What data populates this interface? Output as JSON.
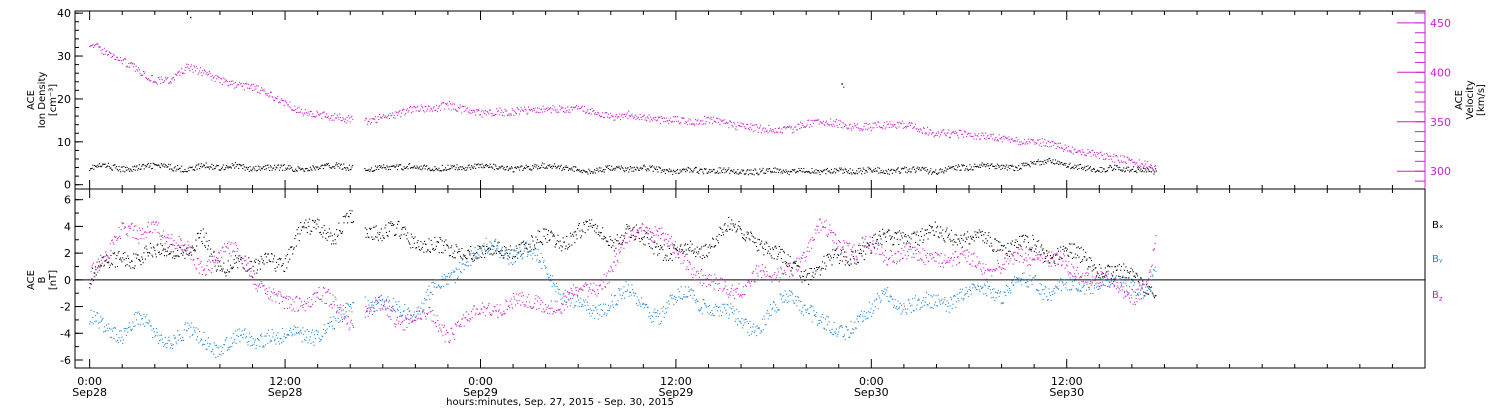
{
  "colors": {
    "black": "#000000",
    "magenta": "#cc22cc",
    "blue": "#1f86d8"
  },
  "chart_data": [
    {
      "type": "scatter",
      "title": "",
      "ylabel_left_lines": [
        "ACE",
        "Ion Density",
        "[cm⁻³]"
      ],
      "ylabel_right_lines": [
        "ACE",
        "Velocity",
        "[km/s]"
      ],
      "ylim_left": [
        -1,
        40.5
      ],
      "ylim_right": [
        282,
        462
      ],
      "yticks_left": [
        0,
        10,
        20,
        30,
        40
      ],
      "yticks_right": [
        300,
        350,
        400,
        450
      ],
      "series": [
        {
          "axis": "left",
          "color": "#000000",
          "x": [
            0.0,
            1.0,
            2.0,
            3.0,
            4.0,
            5.0,
            6.0,
            7.0,
            8.0,
            9.0,
            10.0,
            11.0,
            12.0,
            13.0,
            14.0,
            15.0,
            16.0,
            17.0,
            18.0,
            19.0,
            20.0,
            21.0,
            22.0,
            23.0,
            24.0,
            25.0,
            26.0,
            27.0,
            28.0,
            29.0,
            30.0,
            31.0,
            32.0,
            33.0,
            34.0,
            35.0,
            36.0,
            37.0,
            38.0,
            39.0,
            40.0,
            41.0,
            42.0,
            43.0,
            44.0,
            45.0,
            46.0,
            47.0,
            48.0,
            49.0,
            50.0,
            51.0,
            52.0,
            53.0,
            54.0,
            55.0,
            56.0,
            57.0,
            58.0,
            59.0,
            60.0,
            61.0,
            62.0,
            63.0,
            64.0,
            65.0,
            65.5
          ],
          "y": [
            4,
            4.5,
            3.5,
            4,
            4.5,
            4,
            3.5,
            4.5,
            4,
            4.5,
            3.5,
            4,
            4,
            3.5,
            4,
            4.5,
            4,
            3.5,
            4,
            4,
            4.5,
            3.5,
            4,
            4,
            4.5,
            4,
            3.5,
            4,
            4.5,
            4,
            3.5,
            3,
            4,
            3.5,
            4,
            3.5,
            3,
            3.5,
            3,
            3.5,
            3,
            3,
            3.5,
            3,
            3.5,
            3,
            3.5,
            3,
            3.5,
            3,
            3.5,
            3.5,
            3,
            4,
            4,
            4.5,
            4,
            4,
            5,
            5.5,
            4.5,
            4,
            3.5,
            4,
            3.5,
            3.5,
            3
          ]
        },
        {
          "axis": "right",
          "color": "#cc22cc",
          "x": [
            0.0,
            1.0,
            2.0,
            3.0,
            4.0,
            5.0,
            6.0,
            7.0,
            8.0,
            9.0,
            10.0,
            11.0,
            12.0,
            13.0,
            14.0,
            15.0,
            16.0,
            17.0,
            18.0,
            19.0,
            20.0,
            21.0,
            22.0,
            23.0,
            24.0,
            25.0,
            26.0,
            27.0,
            28.0,
            29.0,
            30.0,
            31.0,
            32.0,
            33.0,
            34.0,
            35.0,
            36.0,
            37.0,
            38.0,
            39.0,
            40.0,
            41.0,
            42.0,
            43.0,
            44.0,
            45.0,
            46.0,
            47.0,
            48.0,
            49.0,
            50.0,
            51.0,
            52.0,
            53.0,
            54.0,
            55.0,
            56.0,
            57.0,
            58.0,
            59.0,
            60.0,
            61.0,
            62.0,
            63.0,
            64.0,
            65.0,
            65.5
          ],
          "y": [
            430,
            420,
            412,
            402,
            392,
            392,
            405,
            400,
            392,
            387,
            385,
            377,
            370,
            360,
            357,
            355,
            352,
            350,
            355,
            358,
            365,
            362,
            367,
            362,
            358,
            360,
            360,
            362,
            363,
            362,
            363,
            360,
            355,
            357,
            355,
            352,
            352,
            350,
            352,
            348,
            345,
            343,
            342,
            342,
            348,
            350,
            348,
            345,
            345,
            347,
            347,
            343,
            338,
            338,
            337,
            335,
            333,
            330,
            330,
            328,
            322,
            320,
            316,
            313,
            310,
            306,
            303
          ]
        },
        {
          "axis": "left",
          "color": "#000000",
          "kind": "spike",
          "x": [
            6.2
          ],
          "y": [
            39
          ]
        },
        {
          "axis": "left",
          "color": "#000000",
          "kind": "spike",
          "x": [
            46.2
          ],
          "y": [
            23.5
          ]
        },
        {
          "axis": "right",
          "color": "#cc22cc",
          "kind": "spike",
          "x": [
            46.3
          ],
          "y": [
            385
          ]
        }
      ]
    },
    {
      "type": "scatter",
      "title": "",
      "ylabel_lines": [
        "ACE",
        "B",
        "[nT]"
      ],
      "ylim": [
        -6.6,
        6.8
      ],
      "yticks": [
        -6,
        -4,
        -2,
        0,
        2,
        4,
        6
      ],
      "zero_line": true,
      "legend": [
        {
          "text": "Bₓ",
          "color": "#000000"
        },
        {
          "text": "Bᵧ",
          "color": "#1f86d8"
        },
        {
          "text": "B_z",
          "label_main": "B",
          "label_sub": "z",
          "color": "#cc22cc"
        }
      ],
      "series": [
        {
          "name": "Bₓ",
          "color": "#000000",
          "x": [
            0,
            1,
            2,
            3,
            4,
            5,
            6,
            7,
            8,
            9,
            10,
            11,
            12,
            13,
            14,
            15,
            16,
            17,
            18,
            19,
            20,
            21,
            22,
            23,
            24,
            25,
            26,
            27,
            28,
            29,
            30,
            31,
            32,
            33,
            34,
            35,
            36,
            37,
            38,
            39,
            40,
            41,
            42,
            43,
            44,
            45,
            46,
            47,
            48,
            49,
            50,
            51,
            52,
            53,
            54,
            55,
            56,
            57,
            58,
            59,
            60,
            61,
            62,
            63,
            64,
            65,
            65.5
          ],
          "y": [
            0,
            1,
            2,
            1.5,
            2,
            2.5,
            2,
            3,
            1,
            1.5,
            0.5,
            2,
            1,
            3.5,
            4.5,
            3,
            4.5,
            4,
            3.5,
            3.5,
            3,
            2.5,
            2,
            2.5,
            2,
            2,
            2.5,
            2.5,
            3,
            3,
            3.5,
            4,
            3,
            3.5,
            3,
            2.5,
            2,
            2,
            2.5,
            4,
            3.5,
            3,
            2,
            1,
            0.5,
            1,
            1.5,
            2,
            2.5,
            3,
            3.5,
            3,
            3.5,
            3.5,
            3,
            3,
            2.5,
            2.5,
            2.5,
            2,
            2,
            1.5,
            1,
            0.5,
            0,
            -0.5,
            -1
          ]
        },
        {
          "name": "Bᵧ",
          "color": "#1f86d8",
          "x": [
            0,
            1,
            2,
            3,
            4,
            5,
            6,
            7,
            8,
            9,
            10,
            11,
            12,
            13,
            14,
            15,
            16,
            17,
            18,
            19,
            20,
            21,
            22,
            23,
            24,
            25,
            26,
            27,
            28,
            29,
            30,
            31,
            32,
            33,
            34,
            35,
            36,
            37,
            38,
            39,
            40,
            41,
            42,
            43,
            44,
            45,
            46,
            47,
            48,
            49,
            50,
            51,
            52,
            53,
            54,
            55,
            56,
            57,
            58,
            59,
            60,
            61,
            62,
            63,
            64,
            65,
            65.5
          ],
          "y": [
            -3,
            -3.5,
            -4,
            -3,
            -4,
            -4.5,
            -4,
            -4.5,
            -5,
            -4.5,
            -4.5,
            -4,
            -4.5,
            -4,
            -4,
            -3.5,
            -2,
            -1.5,
            -2,
            -2,
            -2.5,
            -1,
            0,
            1.5,
            2,
            2.5,
            2,
            2,
            1,
            -1,
            -2,
            -2.5,
            -1.5,
            -1,
            -2,
            -2.5,
            -1.5,
            -1,
            -2,
            -2.5,
            -3,
            -3.5,
            -2.5,
            -1,
            -2,
            -3.5,
            -4,
            -3,
            -2.5,
            -1,
            -2,
            -2,
            -1.5,
            -1.5,
            -1,
            -0.5,
            -1,
            -0.5,
            0,
            -1,
            -0.5,
            -0.5,
            0,
            -0.5,
            -0.5,
            -0.5,
            0.5
          ]
        },
        {
          "name": "B_z",
          "color": "#cc22cc",
          "x": [
            0,
            1,
            2,
            3,
            4,
            5,
            6,
            7,
            8,
            9,
            10,
            11,
            12,
            13,
            14,
            15,
            16,
            17,
            18,
            19,
            20,
            21,
            22,
            23,
            24,
            25,
            26,
            27,
            28,
            29,
            30,
            31,
            32,
            33,
            34,
            35,
            36,
            37,
            38,
            39,
            40,
            41,
            42,
            43,
            44,
            45,
            46,
            47,
            48,
            49,
            50,
            51,
            52,
            53,
            54,
            55,
            56,
            57,
            58,
            59,
            60,
            61,
            62,
            63,
            64,
            65,
            65.5
          ],
          "y": [
            0,
            2,
            4,
            3,
            4.5,
            3,
            2,
            1,
            2,
            2,
            0.5,
            -1,
            -2,
            -1.5,
            -1,
            -2,
            -3,
            -2.5,
            -2,
            -3,
            -2.5,
            -3,
            -4,
            -3,
            -2.5,
            -2,
            -1.5,
            -2,
            -1.5,
            -2,
            -1,
            -0.5,
            0.5,
            3,
            4,
            3.5,
            2,
            1,
            0,
            -1,
            -0.5,
            0.5,
            0,
            1,
            2,
            4,
            3,
            2,
            2.5,
            2,
            2,
            1.5,
            2,
            1.5,
            1.5,
            1,
            1,
            1.5,
            2,
            1.5,
            1,
            0.5,
            0,
            -0.5,
            -1,
            -0.5,
            3
          ]
        }
      ]
    }
  ],
  "x_axis": {
    "xlim": [
      -0.9,
      82
    ],
    "ticks": [
      {
        "x": 0,
        "time": "0:00",
        "date": "Sep28"
      },
      {
        "x": 12,
        "time": "12:00",
        "date": "Sep28"
      },
      {
        "x": 24,
        "time": "0:00",
        "date": "Sep29"
      },
      {
        "x": 36,
        "time": "12:00",
        "date": "Sep29"
      },
      {
        "x": 48,
        "time": "0:00",
        "date": "Sep30"
      },
      {
        "x": 60,
        "time": "12:00",
        "date": "Sep30"
      }
    ],
    "xlabel": "hours:minutes, Sep. 27, 2015 - Sep. 30, 2015",
    "gaps": [
      [
        16.2,
        16.9
      ]
    ]
  }
}
